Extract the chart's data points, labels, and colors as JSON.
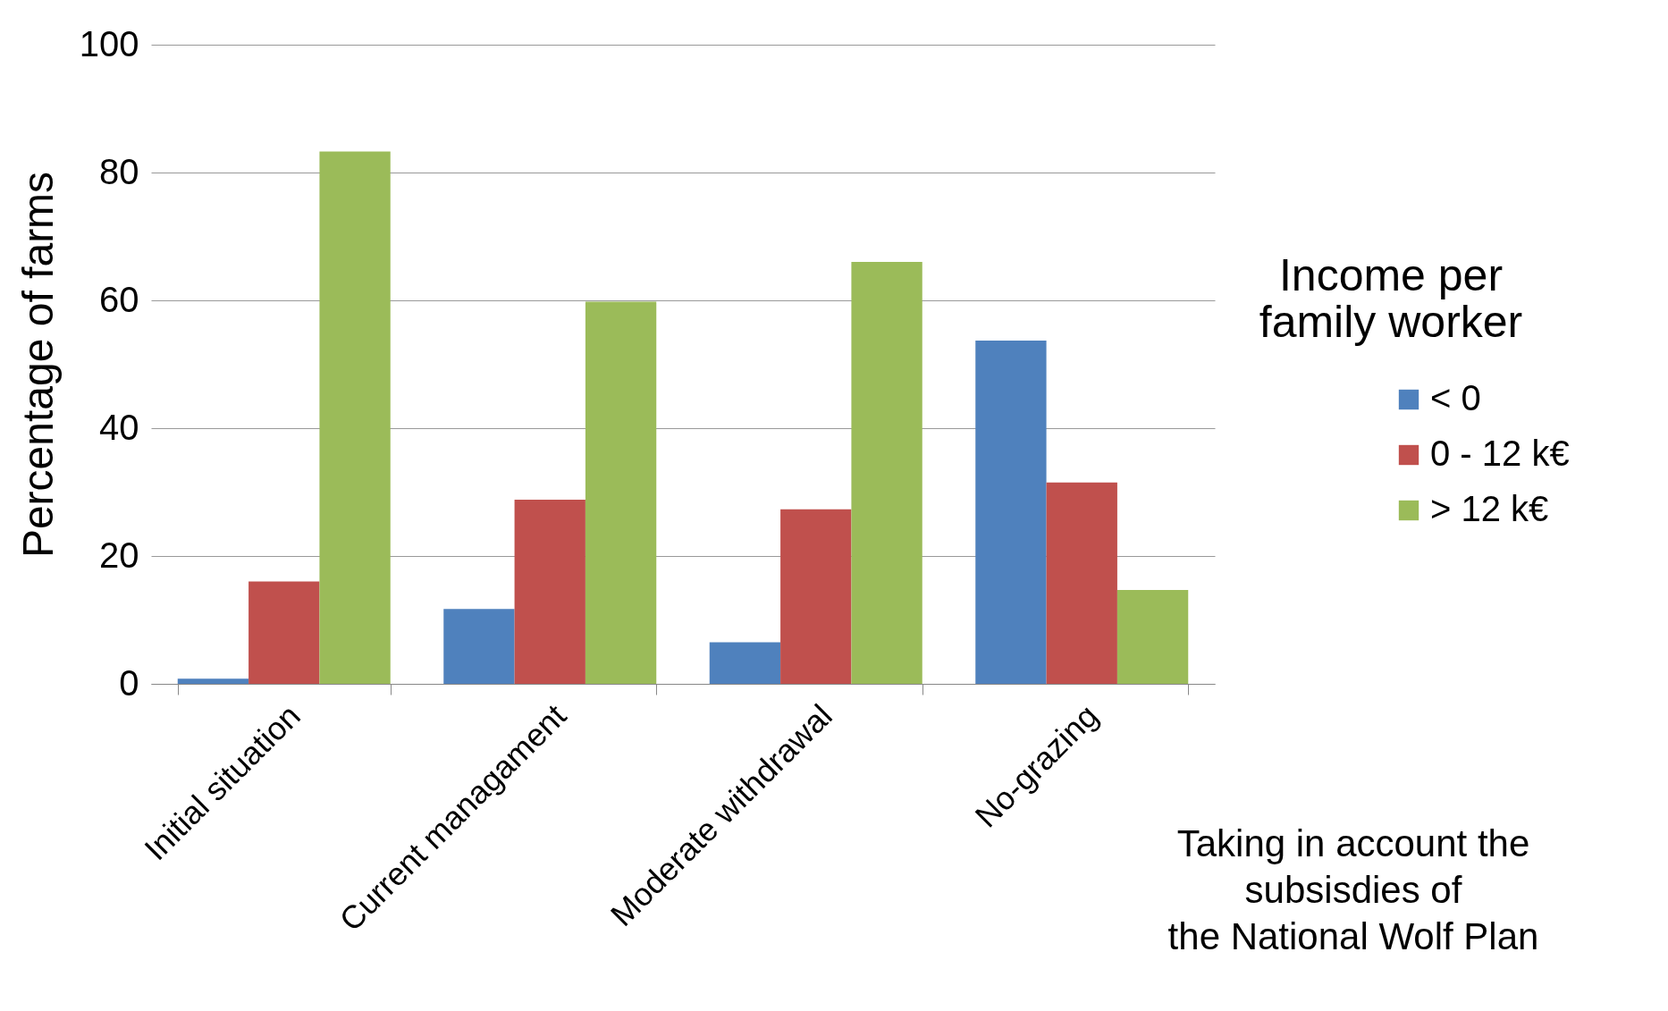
{
  "chart_data": {
    "type": "bar",
    "ylabel": "Percentage of farms",
    "legend_title": "Income per\nfamily worker",
    "categories": [
      "Initial situation",
      "Current managament",
      "Moderate withdrawal",
      "No-grazing"
    ],
    "series": [
      {
        "name": "< 0",
        "color": "#4f81bd",
        "values": [
          0.8,
          11.7,
          6.5,
          53.7
        ]
      },
      {
        "name": "0 - 12 k€",
        "color": "#c0504d",
        "values": [
          16,
          28.8,
          27.3,
          31.5
        ]
      },
      {
        "name": "> 12 k€",
        "color": "#9bbb59",
        "values": [
          83.3,
          59.8,
          66,
          14.7
        ]
      }
    ],
    "ylim": [
      0,
      100
    ],
    "yticks": [
      0,
      20,
      40,
      60,
      80,
      100
    ],
    "grid": "y",
    "legend": "right",
    "annotations": [
      "Taking in account the\nsubsisdies of\nthe National Wolf Plan"
    ]
  }
}
